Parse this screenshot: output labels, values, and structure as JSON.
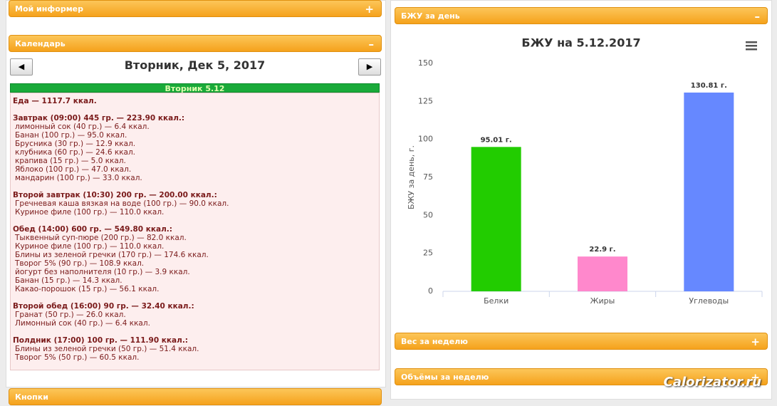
{
  "panels": {
    "informer": "Мой информер",
    "calendar": "Календарь",
    "buttons": "Кнопки",
    "bju": "БЖУ за день",
    "weight": "Вес за неделю",
    "volumes": "Объёмы за неделю"
  },
  "calendar": {
    "date_title": "Вторник, Дек 5, 2017",
    "day_label": "Вторник 5.12"
  },
  "menu": {
    "total": "Еда — 1117.7 ккал.",
    "meals": [
      {
        "title": "Завтрак (09:00) 445 гр. — 223.90 ккал.:",
        "items": [
          "лимонный сок (40 гр.) — 6.4 ккал.",
          "Банан (100 гр.) — 95.0 ккал.",
          "Брусника (30 гр.) — 12.9 ккал.",
          "клубника (60 гр.) — 24.6 ккал.",
          "крапива (15 гр.) — 5.0 ккал.",
          "Яблоко (100 гр.) — 47.0 ккал.",
          "мандарин (100 гр.) — 33.0 ккал."
        ]
      },
      {
        "title": "Второй завтрак (10:30) 200 гр. — 200.00 ккал.:",
        "items": [
          "Гречневая каша вязкая на воде (100 гр.) — 90.0 ккал.",
          "Куриное филе (100 гр.) — 110.0 ккал."
        ]
      },
      {
        "title": "Обед (14:00) 600 гр. — 549.80 ккал.:",
        "items": [
          "Тыквенный суп-пюре (200 гр.) — 82.0 ккал.",
          "Куриное филе (100 гр.) — 110.0 ккал.",
          "Блины из зеленой гречки (170 гр.) — 174.6 ккал.",
          "Творог 5% (90 гр.) — 108.9 ккал.",
          "йогурт без наполнителя (10 гр.) — 3.9 ккал.",
          "Банан (15 гр.) — 14.3 ккал.",
          "Какао-порошок (15 гр.) — 56.1 ккал."
        ]
      },
      {
        "title": "Второй обед (16:00) 90 гр. — 32.40 ккал.:",
        "items": [
          "Гранат (50 гр.) — 26.0 ккал.",
          "Лимонный сок (40 гр.) — 6.4 ккал."
        ]
      },
      {
        "title": "Полдник (17:00) 100 гр. — 111.90 ккал.:",
        "items": [
          "Блины из зеленой гречки (50 гр.) — 51.4 ккал.",
          "Творог 5% (50 гр.) — 60.5 ккал."
        ]
      }
    ]
  },
  "watermark": "Calorizator.ru",
  "chart_data": {
    "type": "bar",
    "title": "БЖУ на 5.12.2017",
    "y_label": "БЖУ за день, г.",
    "categories": [
      "Белки",
      "Жиры",
      "Углеводы"
    ],
    "values": [
      95.01,
      22.9,
      130.81
    ],
    "value_labels": [
      "95.01 г.",
      "22.9 г.",
      "130.81 г."
    ],
    "colors": [
      "#22cc00",
      "#ff88cc",
      "#6688ff"
    ],
    "ylim": [
      0,
      150
    ],
    "yticks": [
      0,
      25,
      50,
      75,
      100,
      125,
      150
    ],
    "grid": false
  }
}
